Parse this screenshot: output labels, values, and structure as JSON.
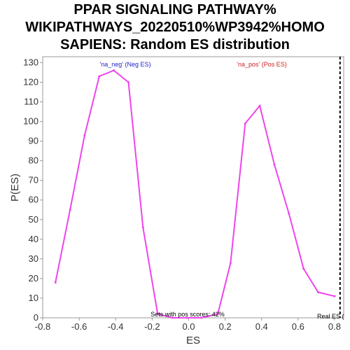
{
  "chart_data": {
    "type": "line",
    "title": [
      "PPAR SIGNALING PATHWAY%",
      "WIKIPATHWAYS_20220510%WP3942%HOMO",
      "SAPIENS: Random ES distribution"
    ],
    "xlabel": "ES",
    "ylabel": "P(ES)",
    "xlim": [
      -0.8,
      0.85
    ],
    "ylim": [
      0,
      133
    ],
    "xticks": [
      -0.8,
      -0.6,
      -0.4,
      -0.2,
      0.0,
      0.2,
      0.4,
      0.6,
      0.8
    ],
    "xtick_labels": [
      "-0.8",
      "-0.6",
      "-0.4",
      "-0.2",
      "0.0",
      "0.2",
      "0.4",
      "0.6",
      "0.8"
    ],
    "yticks": [
      0,
      10,
      20,
      30,
      40,
      50,
      60,
      70,
      80,
      90,
      100,
      110,
      120,
      130
    ],
    "ytick_labels": [
      "0",
      "10",
      "20",
      "30",
      "40",
      "50",
      "60",
      "70",
      "80",
      "90",
      "100",
      "110",
      "120",
      "130"
    ],
    "grid": false,
    "series": [
      {
        "color": "#ee44ee",
        "x": [
          -0.73,
          -0.65,
          -0.57,
          -0.49,
          -0.41,
          -0.33,
          -0.25,
          -0.17,
          -0.09,
          -0.01,
          0.07,
          0.16,
          0.23,
          0.31,
          0.39,
          0.47,
          0.55,
          0.63,
          0.71,
          0.8
        ],
        "y": [
          18,
          55,
          93,
          123,
          126,
          120,
          46,
          2,
          0,
          0,
          0,
          2,
          28,
          99,
          108,
          78,
          53,
          25,
          13,
          11
        ]
      }
    ],
    "real_es": 0.83,
    "annotations": {
      "neg_label": "'na_neg' (Neg ES)",
      "neg_color": "#2222cc",
      "pos_label": "'na_pos' (Pos ES)",
      "pos_color": "#cc2222",
      "sets_label": "Sets with pos scores: 42%",
      "real_es_label": "Real ES ("
    }
  }
}
